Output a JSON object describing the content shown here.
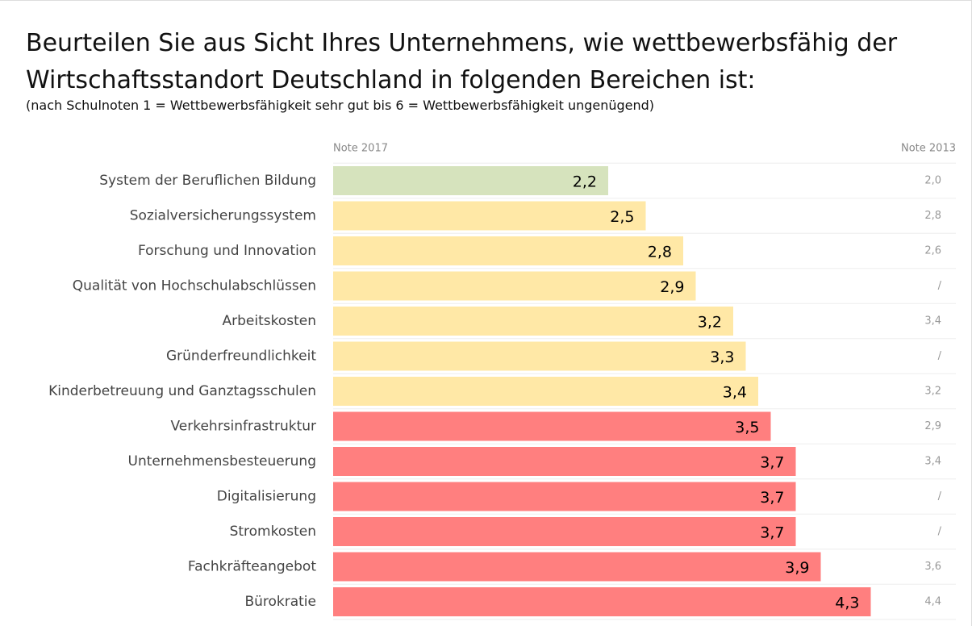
{
  "chart_data": {
    "type": "bar",
    "title": "Beurteilen Sie aus Sicht Ihres Unternehmens, wie wettbewerbsfähig der Wirtschaftsstandort Deutschland in folgenden Bereichen ist:",
    "subtitle": "(nach Schulnoten 1 = Wettbewerbsfähigkeit sehr gut bis 6 = Wettbewerbsfähigkeit ungenügend)",
    "categories": [
      "System der Beruflichen Bildung",
      "Sozialversicherungssystem",
      "Forschung und Innovation",
      "Qualität von Hochschulabschlüssen",
      "Arbeitskosten",
      "Gründerfreundlichkeit",
      "Kinderbetreuung und Ganztagsschulen",
      "Verkehrsinfrastruktur",
      "Unternehmensbesteuerung",
      "Digitalisierung",
      "Stromkosten",
      "Fachkräfteangebot",
      "Bürokratie"
    ],
    "series": [
      {
        "name": "Note 2017",
        "values": [
          2.2,
          2.5,
          2.8,
          2.9,
          3.2,
          3.3,
          3.4,
          3.5,
          3.7,
          3.7,
          3.7,
          3.9,
          4.3
        ],
        "value_labels": [
          "2,2",
          "2,5",
          "2,8",
          "2,9",
          "3,2",
          "3,3",
          "3,4",
          "3,5",
          "3,7",
          "3,7",
          "3,7",
          "3,9",
          "4,3"
        ],
        "colors": [
          "#d6e3bd",
          "#ffe8a6",
          "#ffe8a6",
          "#ffe8a6",
          "#ffe8a6",
          "#ffe8a6",
          "#ffe8a6",
          "#ff7f7f",
          "#ff7f7f",
          "#ff7f7f",
          "#ff7f7f",
          "#ff7f7f",
          "#ff7f7f"
        ]
      },
      {
        "name": "Note 2013",
        "values": [
          2.0,
          2.8,
          2.6,
          null,
          3.4,
          null,
          3.2,
          2.9,
          3.4,
          null,
          null,
          3.6,
          4.4
        ],
        "value_labels": [
          "2,0",
          "2,8",
          "2,6",
          "/",
          "3,4",
          "/",
          "3,2",
          "2,9",
          "3,4",
          "/",
          "/",
          "3,6",
          "4,4"
        ]
      }
    ],
    "xlim": [
      0,
      5
    ]
  }
}
